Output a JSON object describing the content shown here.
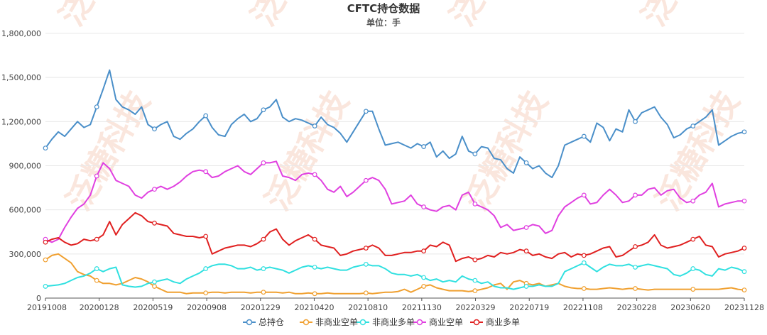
{
  "chart_data": {
    "type": "line",
    "title": "CFTC持仓数据",
    "subtitle": "单位：手",
    "watermark": "泛糖科技",
    "x_tick_labels": [
      "20191008",
      "20200128",
      "20200519",
      "20200908",
      "20201229",
      "20210420",
      "20210810",
      "20211130",
      "20220329",
      "20220719",
      "20221108",
      "20230228",
      "20230620",
      "20231128"
    ],
    "y_ticks": [
      0,
      300000,
      600000,
      900000,
      1200000,
      1500000,
      1800000
    ],
    "y_tick_labels": [
      "0",
      "300,000",
      "600,000",
      "900,000",
      "1,200,000",
      "1,500,000",
      "1,800,000"
    ],
    "ylim": [
      0,
      1800000
    ],
    "legend_position": "bottom-center",
    "marker_every_tick": true,
    "series": [
      {
        "name": "总持仓",
        "color": "#4a8fc9",
        "values": [
          1020000,
          1080000,
          1130000,
          1100000,
          1150000,
          1200000,
          1160000,
          1180000,
          1300000,
          1420000,
          1550000,
          1350000,
          1300000,
          1280000,
          1250000,
          1300000,
          1180000,
          1150000,
          1180000,
          1200000,
          1100000,
          1080000,
          1120000,
          1150000,
          1200000,
          1240000,
          1160000,
          1110000,
          1100000,
          1180000,
          1220000,
          1250000,
          1200000,
          1220000,
          1280000,
          1300000,
          1350000,
          1230000,
          1200000,
          1220000,
          1210000,
          1190000,
          1170000,
          1230000,
          1180000,
          1160000,
          1120000,
          1060000,
          1130000,
          1200000,
          1270000,
          1270000,
          1150000,
          1040000,
          1050000,
          1060000,
          1040000,
          1020000,
          1050000,
          1030000,
          1060000,
          960000,
          1000000,
          950000,
          980000,
          1100000,
          1000000,
          980000,
          1030000,
          1020000,
          950000,
          940000,
          880000,
          850000,
          960000,
          920000,
          880000,
          900000,
          850000,
          820000,
          900000,
          1040000,
          1060000,
          1080000,
          1100000,
          1060000,
          1190000,
          1160000,
          1070000,
          1150000,
          1130000,
          1280000,
          1200000,
          1260000,
          1280000,
          1300000,
          1230000,
          1180000,
          1090000,
          1110000,
          1150000,
          1170000,
          1200000,
          1230000,
          1280000,
          1040000,
          1070000,
          1100000,
          1120000,
          1130000
        ]
      },
      {
        "name": "非商业空单",
        "color": "#f0a030",
        "values": [
          260000,
          290000,
          300000,
          270000,
          240000,
          180000,
          160000,
          150000,
          120000,
          100000,
          100000,
          90000,
          100000,
          120000,
          140000,
          130000,
          110000,
          80000,
          60000,
          40000,
          40000,
          40000,
          30000,
          35000,
          35000,
          35000,
          40000,
          40000,
          35000,
          40000,
          40000,
          40000,
          35000,
          40000,
          40000,
          40000,
          40000,
          35000,
          40000,
          30000,
          30000,
          35000,
          30000,
          30000,
          35000,
          30000,
          30000,
          30000,
          30000,
          30000,
          35000,
          30000,
          35000,
          40000,
          40000,
          45000,
          60000,
          40000,
          60000,
          80000,
          90000,
          70000,
          60000,
          50000,
          50000,
          50000,
          45000,
          50000,
          60000,
          70000,
          90000,
          100000,
          60000,
          110000,
          120000,
          100000,
          90000,
          100000,
          80000,
          90000,
          100000,
          80000,
          70000,
          65000,
          65000,
          60000,
          60000,
          65000,
          70000,
          65000,
          60000,
          65000,
          65000,
          60000,
          55000,
          60000,
          60000,
          60000,
          60000,
          60000,
          60000,
          60000,
          60000,
          60000,
          60000,
          60000,
          65000,
          70000,
          60000,
          55000
        ]
      },
      {
        "name": "非商业多单",
        "color": "#30e0e0",
        "values": [
          80000,
          85000,
          90000,
          100000,
          120000,
          140000,
          150000,
          170000,
          200000,
          180000,
          200000,
          210000,
          90000,
          80000,
          75000,
          80000,
          100000,
          110000,
          120000,
          130000,
          110000,
          100000,
          130000,
          150000,
          170000,
          200000,
          220000,
          230000,
          230000,
          220000,
          200000,
          200000,
          210000,
          190000,
          200000,
          210000,
          200000,
          190000,
          170000,
          190000,
          210000,
          220000,
          210000,
          200000,
          210000,
          200000,
          190000,
          190000,
          210000,
          220000,
          230000,
          220000,
          220000,
          200000,
          170000,
          160000,
          160000,
          150000,
          160000,
          140000,
          120000,
          130000,
          110000,
          120000,
          110000,
          150000,
          130000,
          120000,
          100000,
          110000,
          80000,
          70000,
          70000,
          60000,
          70000,
          80000,
          80000,
          90000,
          80000,
          80000,
          100000,
          180000,
          200000,
          220000,
          240000,
          210000,
          180000,
          210000,
          230000,
          220000,
          220000,
          230000,
          210000,
          220000,
          230000,
          220000,
          210000,
          200000,
          160000,
          150000,
          170000,
          200000,
          190000,
          160000,
          150000,
          200000,
          190000,
          210000,
          200000,
          180000
        ]
      },
      {
        "name": "商业空单",
        "color": "#e040e0",
        "values": [
          400000,
          380000,
          400000,
          480000,
          550000,
          610000,
          640000,
          700000,
          830000,
          920000,
          880000,
          800000,
          780000,
          760000,
          700000,
          680000,
          720000,
          740000,
          760000,
          740000,
          760000,
          790000,
          830000,
          860000,
          870000,
          860000,
          820000,
          830000,
          860000,
          880000,
          900000,
          860000,
          840000,
          880000,
          920000,
          920000,
          930000,
          830000,
          820000,
          800000,
          840000,
          850000,
          840000,
          800000,
          740000,
          720000,
          760000,
          690000,
          720000,
          760000,
          800000,
          820000,
          800000,
          740000,
          640000,
          650000,
          660000,
          700000,
          640000,
          620000,
          600000,
          590000,
          620000,
          630000,
          600000,
          700000,
          720000,
          640000,
          620000,
          600000,
          560000,
          480000,
          500000,
          460000,
          470000,
          480000,
          500000,
          490000,
          440000,
          460000,
          560000,
          620000,
          650000,
          680000,
          700000,
          640000,
          650000,
          700000,
          740000,
          700000,
          650000,
          660000,
          700000,
          700000,
          740000,
          750000,
          700000,
          730000,
          740000,
          680000,
          650000,
          660000,
          700000,
          720000,
          780000,
          620000,
          640000,
          650000,
          660000,
          660000
        ]
      },
      {
        "name": "商业多单",
        "color": "#e02020",
        "values": [
          380000,
          400000,
          410000,
          380000,
          360000,
          370000,
          400000,
          390000,
          400000,
          430000,
          520000,
          430000,
          500000,
          540000,
          580000,
          560000,
          520000,
          510000,
          500000,
          490000,
          440000,
          430000,
          420000,
          420000,
          410000,
          420000,
          300000,
          320000,
          340000,
          350000,
          360000,
          360000,
          350000,
          370000,
          400000,
          450000,
          470000,
          400000,
          360000,
          390000,
          410000,
          430000,
          400000,
          360000,
          350000,
          340000,
          290000,
          300000,
          320000,
          330000,
          340000,
          360000,
          340000,
          290000,
          290000,
          300000,
          310000,
          310000,
          320000,
          320000,
          360000,
          350000,
          380000,
          360000,
          250000,
          270000,
          280000,
          260000,
          270000,
          290000,
          280000,
          310000,
          300000,
          310000,
          330000,
          320000,
          290000,
          300000,
          280000,
          270000,
          300000,
          310000,
          280000,
          300000,
          290000,
          300000,
          320000,
          340000,
          350000,
          280000,
          290000,
          320000,
          350000,
          360000,
          380000,
          430000,
          360000,
          340000,
          350000,
          360000,
          380000,
          400000,
          420000,
          360000,
          350000,
          280000,
          300000,
          310000,
          320000,
          340000
        ]
      }
    ]
  }
}
